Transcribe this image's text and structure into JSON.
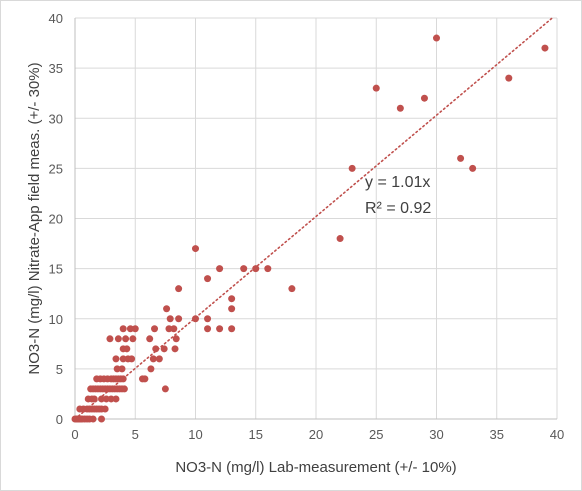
{
  "chart_data": {
    "type": "scatter",
    "xlabel": "NO3-N (mg/l) Lab-measurement (+/- 10%)",
    "ylabel": "NO3-N (mg/l) Nitrate-App field meas. (+/- 30%)",
    "xlim": [
      0,
      40
    ],
    "ylim": [
      0,
      40
    ],
    "x_ticks": [
      "0",
      "5",
      "10",
      "15",
      "20",
      "25",
      "30",
      "35",
      "40"
    ],
    "y_ticks": [
      "0",
      "5",
      "10",
      "15",
      "20",
      "25",
      "30",
      "35",
      "40"
    ],
    "grid": "vertical and horizontal",
    "marker_color": "#c0504d",
    "trendline": {
      "type": "linear through origin",
      "slope": 1.01,
      "style": "dotted",
      "color": "#c0504d"
    },
    "annotation_equation": "y = 1.01x",
    "annotation_r2": "R² = 0.92",
    "points": [
      {
        "x": 0,
        "y": 0
      },
      {
        "x": 0.1,
        "y": 0
      },
      {
        "x": 0.2,
        "y": 0
      },
      {
        "x": 0.3,
        "y": 0
      },
      {
        "x": 0.4,
        "y": 0
      },
      {
        "x": 0.5,
        "y": 0
      },
      {
        "x": 0.6,
        "y": 0
      },
      {
        "x": 0.8,
        "y": 0
      },
      {
        "x": 1.0,
        "y": 0
      },
      {
        "x": 1.2,
        "y": 0
      },
      {
        "x": 1.5,
        "y": 0
      },
      {
        "x": 2.2,
        "y": 0
      },
      {
        "x": 0.4,
        "y": 1
      },
      {
        "x": 0.7,
        "y": 1
      },
      {
        "x": 1.0,
        "y": 1
      },
      {
        "x": 1.2,
        "y": 1
      },
      {
        "x": 1.4,
        "y": 1
      },
      {
        "x": 1.6,
        "y": 1
      },
      {
        "x": 1.8,
        "y": 1
      },
      {
        "x": 2.0,
        "y": 1
      },
      {
        "x": 2.2,
        "y": 1
      },
      {
        "x": 2.5,
        "y": 1
      },
      {
        "x": 1.1,
        "y": 2
      },
      {
        "x": 1.4,
        "y": 2
      },
      {
        "x": 1.6,
        "y": 2
      },
      {
        "x": 2.2,
        "y": 2
      },
      {
        "x": 2.6,
        "y": 2
      },
      {
        "x": 3.0,
        "y": 2
      },
      {
        "x": 3.4,
        "y": 2
      },
      {
        "x": 1.3,
        "y": 3
      },
      {
        "x": 1.5,
        "y": 3
      },
      {
        "x": 1.7,
        "y": 3
      },
      {
        "x": 1.9,
        "y": 3
      },
      {
        "x": 2.1,
        "y": 3
      },
      {
        "x": 2.3,
        "y": 3
      },
      {
        "x": 2.5,
        "y": 3
      },
      {
        "x": 2.7,
        "y": 3
      },
      {
        "x": 2.9,
        "y": 3
      },
      {
        "x": 3.1,
        "y": 3
      },
      {
        "x": 3.3,
        "y": 3
      },
      {
        "x": 3.5,
        "y": 3
      },
      {
        "x": 3.7,
        "y": 3
      },
      {
        "x": 3.9,
        "y": 3
      },
      {
        "x": 4.1,
        "y": 3
      },
      {
        "x": 7.5,
        "y": 3
      },
      {
        "x": 1.8,
        "y": 4
      },
      {
        "x": 2.1,
        "y": 4
      },
      {
        "x": 2.4,
        "y": 4
      },
      {
        "x": 2.7,
        "y": 4
      },
      {
        "x": 3.0,
        "y": 4
      },
      {
        "x": 3.2,
        "y": 4
      },
      {
        "x": 3.4,
        "y": 4
      },
      {
        "x": 3.6,
        "y": 4
      },
      {
        "x": 3.8,
        "y": 4
      },
      {
        "x": 4.0,
        "y": 4
      },
      {
        "x": 5.6,
        "y": 4
      },
      {
        "x": 5.8,
        "y": 4
      },
      {
        "x": 3.5,
        "y": 5
      },
      {
        "x": 3.9,
        "y": 5
      },
      {
        "x": 6.3,
        "y": 5
      },
      {
        "x": 3.4,
        "y": 6
      },
      {
        "x": 4.0,
        "y": 6
      },
      {
        "x": 4.4,
        "y": 6
      },
      {
        "x": 4.7,
        "y": 6
      },
      {
        "x": 6.5,
        "y": 6
      },
      {
        "x": 7.0,
        "y": 6
      },
      {
        "x": 4.0,
        "y": 7
      },
      {
        "x": 4.3,
        "y": 7
      },
      {
        "x": 6.7,
        "y": 7
      },
      {
        "x": 7.4,
        "y": 7
      },
      {
        "x": 8.3,
        "y": 7
      },
      {
        "x": 2.9,
        "y": 8
      },
      {
        "x": 3.6,
        "y": 8
      },
      {
        "x": 4.2,
        "y": 8
      },
      {
        "x": 4.8,
        "y": 8
      },
      {
        "x": 6.2,
        "y": 8
      },
      {
        "x": 8.4,
        "y": 8
      },
      {
        "x": 4.0,
        "y": 9
      },
      {
        "x": 4.6,
        "y": 9
      },
      {
        "x": 5.0,
        "y": 9
      },
      {
        "x": 6.6,
        "y": 9
      },
      {
        "x": 7.8,
        "y": 9
      },
      {
        "x": 8.2,
        "y": 9
      },
      {
        "x": 11.0,
        "y": 9
      },
      {
        "x": 12.0,
        "y": 9
      },
      {
        "x": 13.0,
        "y": 9
      },
      {
        "x": 7.9,
        "y": 10
      },
      {
        "x": 8.6,
        "y": 10
      },
      {
        "x": 10.0,
        "y": 10
      },
      {
        "x": 11.0,
        "y": 10
      },
      {
        "x": 7.6,
        "y": 11
      },
      {
        "x": 13.0,
        "y": 11
      },
      {
        "x": 13.0,
        "y": 12
      },
      {
        "x": 8.6,
        "y": 13
      },
      {
        "x": 18.0,
        "y": 13
      },
      {
        "x": 11.0,
        "y": 14
      },
      {
        "x": 12.0,
        "y": 15
      },
      {
        "x": 14.0,
        "y": 15
      },
      {
        "x": 15.0,
        "y": 15
      },
      {
        "x": 16.0,
        "y": 15
      },
      {
        "x": 10.0,
        "y": 17
      },
      {
        "x": 22.0,
        "y": 18
      },
      {
        "x": 23.0,
        "y": 25
      },
      {
        "x": 32.0,
        "y": 26
      },
      {
        "x": 33.0,
        "y": 25
      },
      {
        "x": 27.0,
        "y": 31
      },
      {
        "x": 29.0,
        "y": 32
      },
      {
        "x": 25.0,
        "y": 33
      },
      {
        "x": 36.0,
        "y": 34
      },
      {
        "x": 39.0,
        "y": 37
      },
      {
        "x": 30.0,
        "y": 38
      }
    ]
  }
}
